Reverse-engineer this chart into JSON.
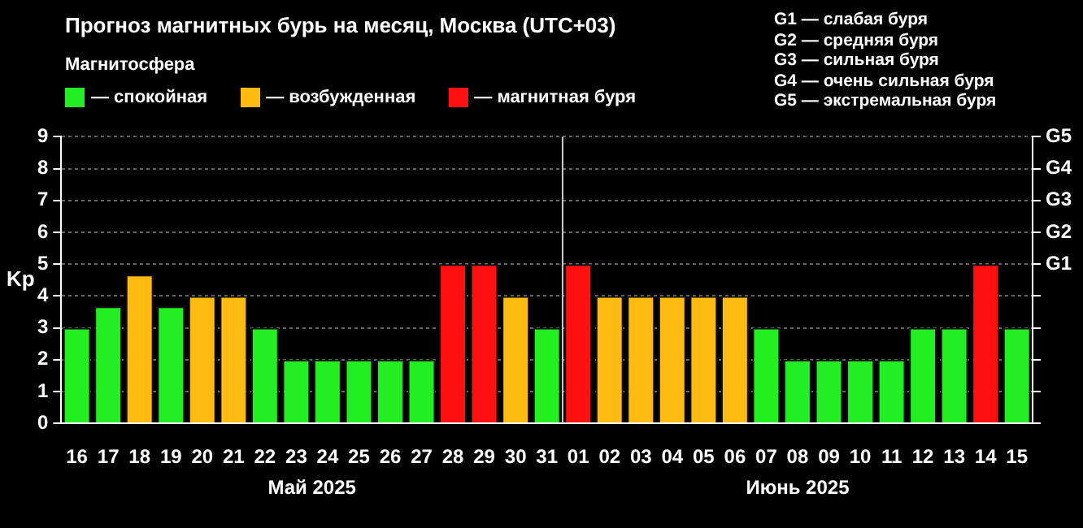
{
  "chart_data": {
    "type": "bar",
    "title": "Прогноз магнитных бурь на месяц, Москва (UTC+03)",
    "legend_title": "Магнитосфера",
    "legend": "top left",
    "ylabel": "Kp",
    "grid": "y",
    "categories": [
      "16",
      "17",
      "18",
      "19",
      "20",
      "21",
      "22",
      "23",
      "24",
      "25",
      "26",
      "27",
      "28",
      "29",
      "30",
      "31",
      "01",
      "02",
      "03",
      "04",
      "05",
      "06",
      "07",
      "08",
      "09",
      "10",
      "11",
      "12",
      "13",
      "14",
      "15"
    ],
    "series": [
      {
        "name": "— спокойная",
        "color": "#22ee22",
        "values": [
          3,
          3.67,
          null,
          3.67,
          null,
          null,
          3,
          2,
          2,
          2,
          2,
          2,
          null,
          null,
          null,
          3,
          null,
          null,
          null,
          null,
          null,
          null,
          3,
          2,
          2,
          2,
          2,
          3,
          3,
          null,
          3
        ]
      },
      {
        "name": "— возбужденная",
        "color": "#ffbb11",
        "values": [
          null,
          null,
          4.67,
          null,
          4,
          4,
          null,
          null,
          null,
          null,
          null,
          null,
          null,
          null,
          4,
          null,
          null,
          4,
          4,
          4,
          4,
          4,
          null,
          null,
          null,
          null,
          null,
          null,
          null,
          null,
          null
        ]
      },
      {
        "name": "— магнитная буря",
        "color": "#ff1111",
        "values": [
          null,
          null,
          null,
          null,
          null,
          null,
          null,
          null,
          null,
          null,
          null,
          null,
          5,
          5,
          null,
          null,
          5,
          null,
          null,
          null,
          null,
          null,
          null,
          null,
          null,
          null,
          null,
          null,
          null,
          5,
          null
        ]
      }
    ],
    "ylim": [
      0,
      9
    ],
    "yticks": [
      0,
      1,
      2,
      3,
      4,
      5,
      6,
      7,
      8,
      9
    ],
    "ref_lines": [
      {
        "axis": "x",
        "value": "01",
        "color": "#cccccc"
      }
    ],
    "annotations": [
      "Май 2025",
      "Июнь 2025",
      "G1",
      "G2",
      "G3",
      "G4",
      "G5",
      "G1 — слабая буря",
      "G2 — средняя буря",
      "G3 — сильная буря",
      "G4 — очень сильная буря",
      "G5 — экстремальная буря"
    ]
  }
}
